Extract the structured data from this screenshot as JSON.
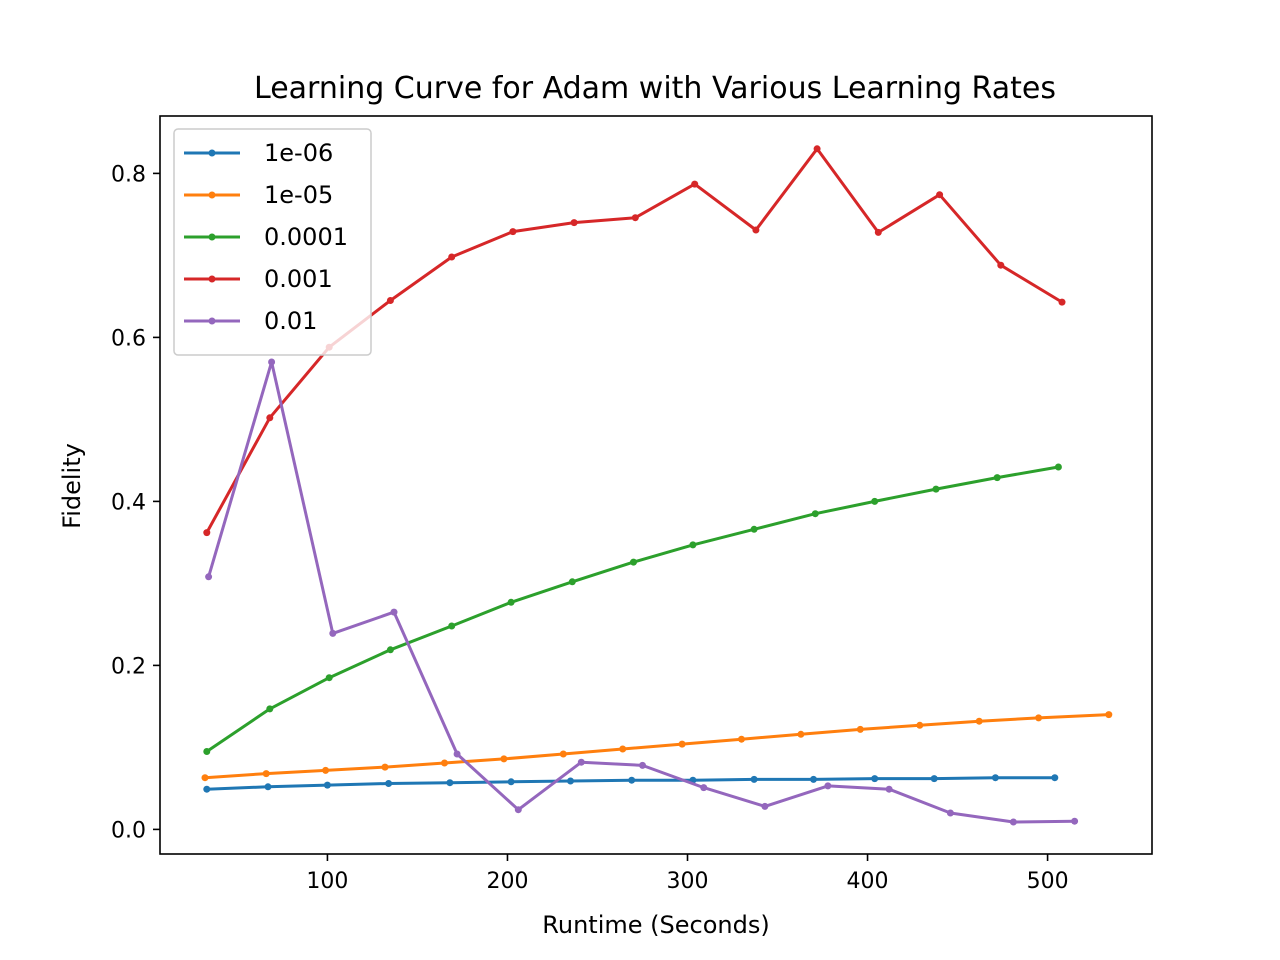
{
  "chart_data": {
    "type": "line",
    "title": "Learning Curve for Adam with Various Learning Rates",
    "xlabel": "Runtime (Seconds)",
    "ylabel": "Fidelity",
    "xlim": [
      7,
      558
    ],
    "ylim": [
      -0.03,
      0.87
    ],
    "xticks": [
      100,
      200,
      300,
      400,
      500
    ],
    "yticks": [
      0.0,
      0.2,
      0.4,
      0.6,
      0.8
    ],
    "xtick_labels": [
      "100",
      "200",
      "300",
      "400",
      "500"
    ],
    "ytick_labels": [
      "0.0",
      "0.2",
      "0.4",
      "0.6",
      "0.8"
    ],
    "grid": false,
    "legend_position": "top-left",
    "series": [
      {
        "name": "1e-06",
        "color": "#1f77b4",
        "x": [
          33,
          67,
          100,
          134,
          168,
          202,
          235,
          269,
          303,
          337,
          370,
          404,
          437,
          471,
          504
        ],
        "y": [
          0.049,
          0.052,
          0.054,
          0.056,
          0.057,
          0.058,
          0.059,
          0.06,
          0.06,
          0.061,
          0.061,
          0.062,
          0.062,
          0.063,
          0.063
        ]
      },
      {
        "name": "1e-05",
        "color": "#ff7f0e",
        "x": [
          32,
          66,
          99,
          132,
          165,
          198,
          231,
          264,
          297,
          330,
          363,
          396,
          429,
          462,
          495,
          534
        ],
        "y": [
          0.063,
          0.068,
          0.072,
          0.076,
          0.081,
          0.086,
          0.092,
          0.098,
          0.104,
          0.11,
          0.116,
          0.122,
          0.127,
          0.132,
          0.136,
          0.14
        ]
      },
      {
        "name": "0.0001",
        "color": "#2ca02c",
        "x": [
          33,
          68,
          101,
          135,
          169,
          202,
          236,
          270,
          303,
          337,
          371,
          404,
          438,
          472,
          506
        ],
        "y": [
          0.095,
          0.147,
          0.185,
          0.219,
          0.248,
          0.277,
          0.302,
          0.326,
          0.347,
          0.366,
          0.385,
          0.4,
          0.415,
          0.429,
          0.442
        ]
      },
      {
        "name": "0.001",
        "color": "#d62728",
        "x": [
          33,
          68,
          101,
          135,
          169,
          203,
          237,
          271,
          304,
          338,
          372,
          406,
          440,
          474,
          508
        ],
        "y": [
          0.362,
          0.502,
          0.588,
          0.645,
          0.698,
          0.729,
          0.74,
          0.746,
          0.787,
          0.731,
          0.83,
          0.728,
          0.774,
          0.688,
          0.643
        ]
      },
      {
        "name": "0.01",
        "color": "#9467bd",
        "x": [
          34,
          69,
          103,
          137,
          172,
          206,
          241,
          275,
          309,
          343,
          378,
          412,
          446,
          481,
          515
        ],
        "y": [
          0.308,
          0.57,
          0.239,
          0.265,
          0.092,
          0.024,
          0.082,
          0.078,
          0.051,
          0.028,
          0.053,
          0.049,
          0.02,
          0.009,
          0.01
        ]
      }
    ]
  }
}
